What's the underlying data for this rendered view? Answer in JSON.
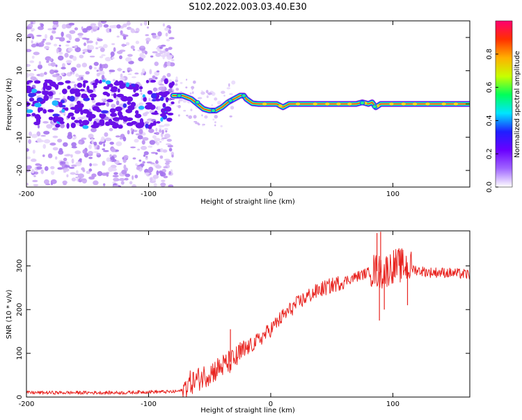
{
  "title": "S102.2022.003.03.40.E30",
  "colors": {
    "background": "#ffffff",
    "spectrogram_scatter": "#8c3cf0",
    "spectrogram_core": "#6a0fe8",
    "ridge_high": "#ff1a2a",
    "snr_line": "#e8231f"
  },
  "colorbar": {
    "label": "Normalized spectral amplitude",
    "ticks": [
      "0.0",
      "0.2",
      "0.4",
      "0.6",
      "0.8"
    ],
    "tick_values": [
      0.0,
      0.2,
      0.4,
      0.6,
      0.8
    ],
    "range": [
      0,
      1
    ],
    "colormap": [
      "#ffffff",
      "#a066ff",
      "#6a00ff",
      "#1f1fff",
      "#00e5ff",
      "#00ff5a",
      "#c8ff00",
      "#ffb000",
      "#ff3000",
      "#ff0070"
    ]
  },
  "chart_data": [
    {
      "type": "heatmap",
      "name": "spectrogram",
      "xlabel": "Height of straight line (km)",
      "ylabel": "Frequency (Hz)",
      "xlim": [
        -200,
        163
      ],
      "ylim": [
        -25,
        25
      ],
      "xticks": [
        "-200",
        "-100",
        "0",
        "100"
      ],
      "xtick_values": [
        -200,
        -100,
        0,
        100
      ],
      "yticks": [
        "-20",
        "-10",
        "0",
        "10",
        "20"
      ],
      "ytick_values": [
        -20,
        -10,
        0,
        10,
        20
      ],
      "noisy_region_x": [
        -200,
        -80
      ],
      "ridge": {
        "x": [
          -80,
          -72,
          -65,
          -60,
          -55,
          -50,
          -45,
          -40,
          -35,
          -30,
          -25,
          -22,
          -20,
          -15,
          -10,
          -5,
          0,
          5,
          10,
          15,
          20,
          30,
          40,
          50,
          60,
          70,
          75,
          80,
          83,
          86,
          90,
          100,
          110,
          120,
          130,
          140,
          150,
          163
        ],
        "y": [
          2.5,
          2.5,
          1.5,
          0,
          -1.5,
          -2.0,
          -2.0,
          -1.0,
          0.5,
          1.5,
          2.5,
          2.5,
          1.5,
          0.2,
          0,
          0,
          0,
          0,
          -1.0,
          0,
          0,
          0,
          0,
          0,
          0,
          0,
          0.5,
          0,
          0.5,
          -1.0,
          0,
          0,
          0,
          0,
          0,
          0,
          0,
          0
        ]
      }
    },
    {
      "type": "line",
      "name": "snr",
      "xlabel": "Height of straight line (km)",
      "ylabel": "SNR (10 * v/v)",
      "xlim": [
        -200,
        163
      ],
      "ylim": [
        0,
        380
      ],
      "xticks": [
        "-200",
        "-100",
        "0",
        "100"
      ],
      "xtick_values": [
        -200,
        -100,
        0,
        100
      ],
      "yticks": [
        "0",
        "100",
        "200",
        "300"
      ],
      "ytick_values": [
        0,
        100,
        200,
        300
      ],
      "series": [
        {
          "x": [
            -200,
            -180,
            -160,
            -140,
            -120,
            -100,
            -80,
            -72,
            -68,
            -60,
            -50,
            -40,
            -30,
            -20,
            -10,
            0,
            10,
            20,
            30,
            40,
            50,
            60,
            70,
            80,
            85,
            90,
            95,
            100,
            110,
            120,
            130,
            140,
            150,
            163
          ],
          "values": [
            10,
            10,
            10,
            10,
            10,
            12,
            12,
            15,
            30,
            40,
            55,
            70,
            85,
            110,
            130,
            155,
            185,
            210,
            230,
            245,
            255,
            265,
            275,
            285,
            290,
            285,
            290,
            300,
            300,
            290,
            285,
            285,
            283,
            280
          ],
          "spikes": [
            {
              "x": -33,
              "value": 155
            },
            {
              "x": -25,
              "value": 125
            },
            {
              "x": 87,
              "value": 375
            },
            {
              "x": 89,
              "value": 175
            },
            {
              "x": 90,
              "value": 378
            },
            {
              "x": 93,
              "value": 200
            },
            {
              "x": 105,
              "value": 340
            },
            {
              "x": 112,
              "value": 210
            }
          ]
        }
      ]
    }
  ]
}
